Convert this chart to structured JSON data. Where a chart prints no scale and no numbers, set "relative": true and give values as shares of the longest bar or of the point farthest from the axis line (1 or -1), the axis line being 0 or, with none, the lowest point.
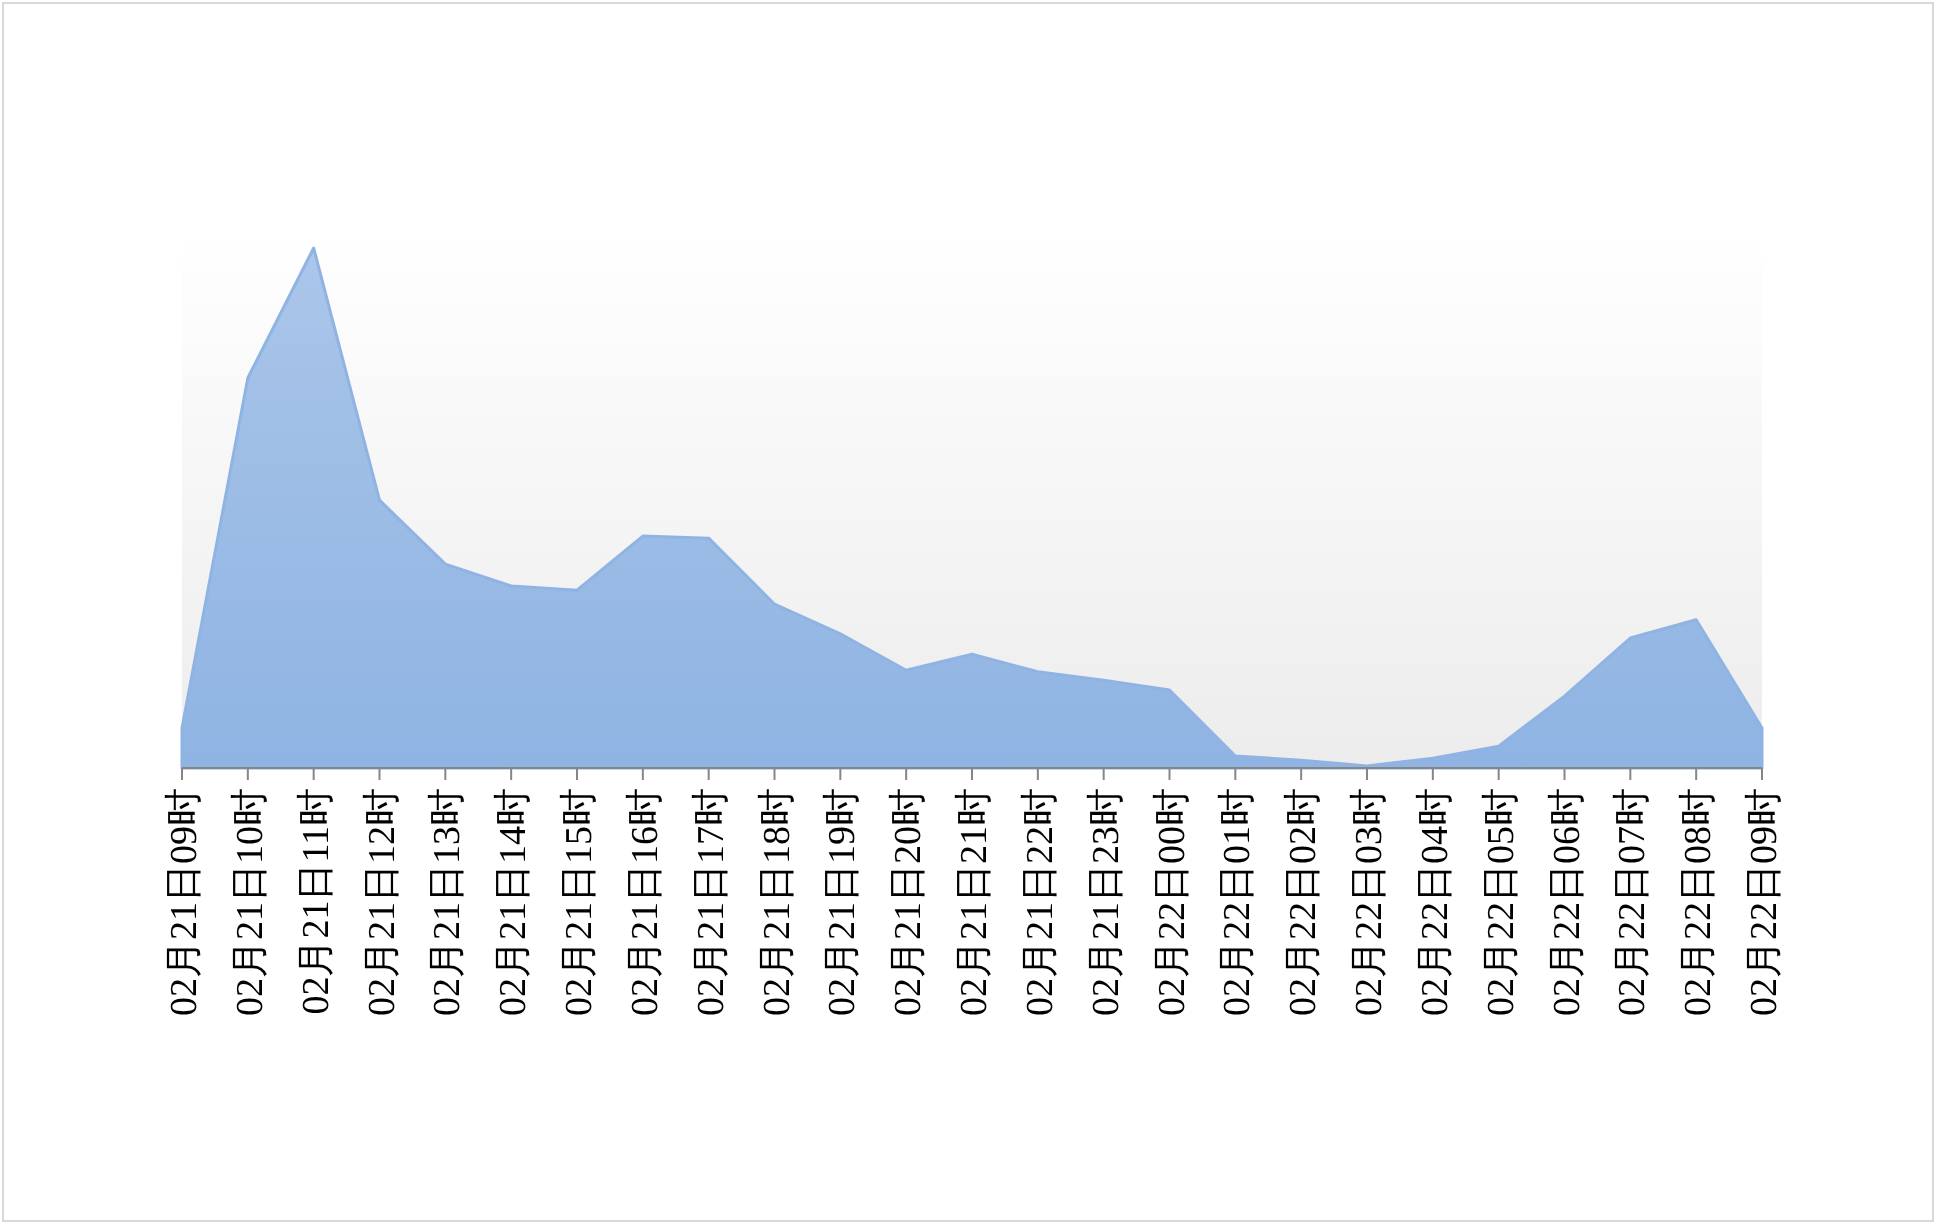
{
  "chart_data": {
    "type": "area",
    "relative": true,
    "categories": [
      "02月21日09时",
      "02月21日10时",
      "02月21日11时",
      "02月21日12时",
      "02月21日13时",
      "02月21日14时",
      "02月21日15时",
      "02月21日16时",
      "02月21日17时",
      "02月21日18时",
      "02月21日19时",
      "02月21日20时",
      "02月21日21时",
      "02月21日22时",
      "02月21日23时",
      "02月22日00时",
      "02月22日01时",
      "02月22日02时",
      "02月22日03时",
      "02月22日04时",
      "02月22日05时",
      "02月22日06时",
      "02月22日07时",
      "02月22日08时",
      "02月22日09时"
    ],
    "color": "#8fb4e3",
    "values": [
      0.077,
      0.75,
      1,
      0.515,
      0.392,
      0.35,
      0.342,
      0.446,
      0.442,
      0.315,
      0.258,
      0.188,
      0.219,
      0.185,
      0.169,
      0.15,
      0.023,
      0.015,
      0.004,
      0.019,
      0.042,
      0.138,
      0.25,
      0.285,
      0.077
    ]
  }
}
